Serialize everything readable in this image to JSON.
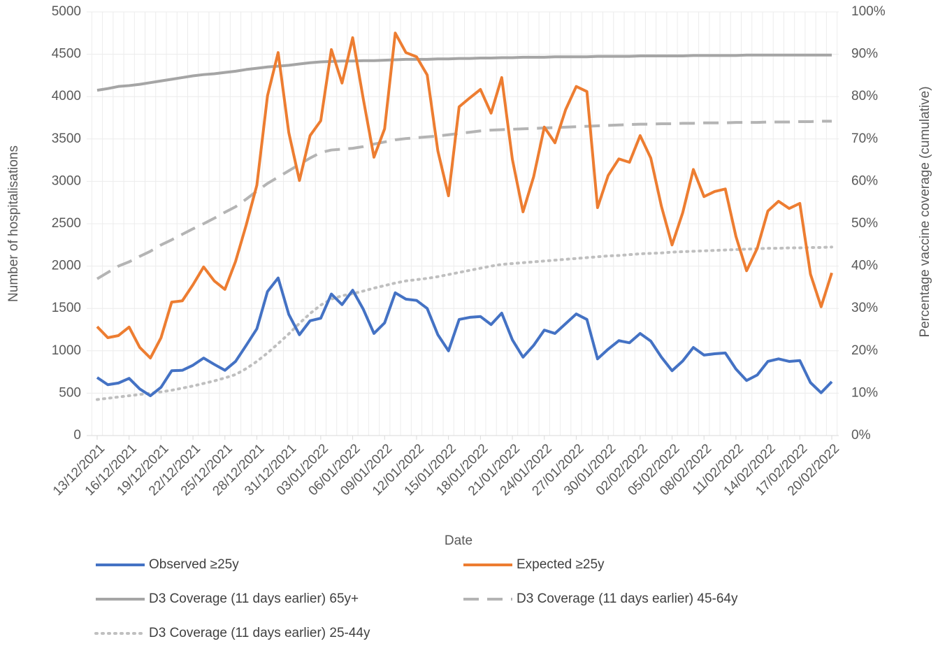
{
  "chart_data": {
    "type": "line",
    "x_label": "Date",
    "y_label": "Number of hospitalisations",
    "y2_label": "Percentage vaccine coverage (cumulative)",
    "categories": [
      "13/12/2021",
      null,
      null,
      "16/12/2021",
      null,
      null,
      "19/12/2021",
      null,
      null,
      "22/12/2021",
      null,
      null,
      "25/12/2021",
      null,
      null,
      "28/12/2021",
      null,
      null,
      "31/12/2021",
      null,
      null,
      "03/01/2022",
      null,
      null,
      "06/01/2022",
      null,
      null,
      "09/01/2022",
      null,
      null,
      "12/01/2022",
      null,
      null,
      "15/01/2022",
      null,
      null,
      "18/01/2022",
      null,
      null,
      "21/01/2022",
      null,
      null,
      "24/01/2022",
      null,
      null,
      "27/01/2022",
      null,
      null,
      "30/01/2022",
      null,
      null,
      "02/02/2022",
      null,
      null,
      "05/02/2022",
      null,
      null,
      "08/02/2022",
      null,
      null,
      "11/02/2022",
      null,
      null,
      "14/02/2022",
      null,
      null,
      "17/02/2022",
      null,
      null,
      "20/02/2022"
    ],
    "ylim": [
      0,
      5000
    ],
    "yticks": [
      0,
      500,
      1000,
      1500,
      2000,
      2500,
      3000,
      3500,
      4000,
      4500,
      5000
    ],
    "y2lim": [
      0,
      100
    ],
    "y2ticks": [
      {
        "value": 0,
        "label": "0%"
      },
      {
        "value": 10,
        "label": "10%"
      },
      {
        "value": 20,
        "label": "20%"
      },
      {
        "value": 30,
        "label": "30%"
      },
      {
        "value": 40,
        "label": "40%"
      },
      {
        "value": 50,
        "label": "50%"
      },
      {
        "value": 60,
        "label": "60%"
      },
      {
        "value": 70,
        "label": "70%"
      },
      {
        "value": 80,
        "label": "80%"
      },
      {
        "value": 90,
        "label": "90%"
      },
      {
        "value": 100,
        "label": "100%"
      }
    ],
    "grid": true,
    "legend": "bottom",
    "series": [
      {
        "name": "Observed ≥25y",
        "color": "#4472c4",
        "dash": "solid",
        "values": [
          685,
          600,
          620,
          675,
          550,
          470,
          570,
          765,
          770,
          830,
          915,
          840,
          770,
          875,
          1065,
          1260,
          1700,
          1860,
          1430,
          1190,
          1355,
          1385,
          1670,
          1545,
          1715,
          1490,
          1205,
          1330,
          1685,
          1610,
          1595,
          1500,
          1190,
          1000,
          1370,
          1395,
          1405,
          1310,
          1445,
          1130,
          925,
          1065,
          1245,
          1205,
          1320,
          1435,
          1370,
          905,
          1020,
          1120,
          1095,
          1205,
          1115,
          925,
          765,
          880,
          1040,
          950,
          965,
          975,
          785,
          650,
          715,
          875,
          905,
          875,
          885,
          625,
          505,
          635
        ]
      },
      {
        "name": "Expected ≥25y",
        "color": "#ed7d31",
        "dash": "solid",
        "values": [
          1285,
          1155,
          1180,
          1280,
          1040,
          915,
          1155,
          1575,
          1590,
          1780,
          1990,
          1825,
          1725,
          2055,
          2485,
          2955,
          4010,
          4520,
          3575,
          3010,
          3540,
          3715,
          4555,
          4160,
          4695,
          3970,
          3285,
          3620,
          4750,
          4520,
          4470,
          4255,
          3360,
          2830,
          3880,
          3985,
          4085,
          3805,
          4225,
          3260,
          2640,
          3055,
          3640,
          3455,
          3845,
          4120,
          4060,
          2690,
          3070,
          3265,
          3225,
          3540,
          3275,
          2705,
          2250,
          2630,
          3140,
          2820,
          2880,
          2910,
          2350,
          1945,
          2210,
          2650,
          2765,
          2680,
          2740,
          1905,
          1520,
          1920
        ]
      },
      {
        "name": "D3 Coverage (11 days earlier) 65y+",
        "color": "#a5a5a5",
        "dash": "solid",
        "axis": "y2",
        "values": [
          81.5,
          81.9,
          82.4,
          82.6,
          82.9,
          83.3,
          83.7,
          84.1,
          84.5,
          84.9,
          85.2,
          85.4,
          85.7,
          86.0,
          86.4,
          86.7,
          87.0,
          87.2,
          87.4,
          87.7,
          88.0,
          88.2,
          88.3,
          88.4,
          88.4,
          88.5,
          88.5,
          88.6,
          88.7,
          88.8,
          88.8,
          88.8,
          88.9,
          88.9,
          89.0,
          89.0,
          89.1,
          89.1,
          89.2,
          89.2,
          89.3,
          89.3,
          89.3,
          89.4,
          89.4,
          89.4,
          89.4,
          89.5,
          89.5,
          89.5,
          89.5,
          89.6,
          89.6,
          89.6,
          89.6,
          89.6,
          89.7,
          89.7,
          89.7,
          89.7,
          89.7,
          89.8,
          89.8,
          89.8,
          89.8,
          89.8,
          89.8,
          89.8,
          89.8,
          89.8
        ]
      },
      {
        "name": "D3 Coverage (11 days earlier) 45-64y",
        "color": "#b4b4b4",
        "dash": "dashed",
        "axis": "y2",
        "values": [
          37.0,
          38.5,
          40.0,
          41.0,
          42.3,
          43.5,
          45.0,
          46.2,
          47.5,
          48.8,
          50.0,
          51.3,
          52.7,
          54.0,
          55.8,
          57.7,
          59.5,
          61.0,
          62.5,
          64.0,
          65.5,
          66.8,
          67.4,
          67.6,
          67.8,
          68.2,
          68.8,
          69.3,
          69.8,
          70.1,
          70.3,
          70.5,
          70.7,
          71.0,
          71.3,
          71.6,
          71.9,
          72.1,
          72.2,
          72.3,
          72.4,
          72.5,
          72.6,
          72.7,
          72.8,
          72.9,
          73.0,
          73.1,
          73.2,
          73.3,
          73.4,
          73.5,
          73.5,
          73.6,
          73.6,
          73.7,
          73.7,
          73.8,
          73.8,
          73.8,
          73.9,
          73.9,
          73.9,
          74.0,
          74.0,
          74.0,
          74.1,
          74.1,
          74.2,
          74.2
        ]
      },
      {
        "name": "D3 Coverage (11 days earlier) 25-44y",
        "color": "#bfbfbf",
        "dash": "dotted",
        "axis": "y2",
        "values": [
          8.5,
          8.8,
          9.1,
          9.4,
          9.7,
          10.0,
          10.3,
          10.7,
          11.2,
          11.7,
          12.3,
          12.9,
          13.6,
          14.4,
          15.8,
          17.5,
          19.5,
          21.7,
          24.0,
          26.5,
          28.8,
          30.8,
          32.2,
          33.0,
          33.5,
          34.1,
          34.8,
          35.4,
          36.0,
          36.5,
          36.8,
          37.1,
          37.5,
          38.0,
          38.5,
          39.0,
          39.5,
          40.0,
          40.4,
          40.6,
          40.8,
          41.0,
          41.2,
          41.4,
          41.6,
          41.8,
          42.0,
          42.2,
          42.4,
          42.5,
          42.7,
          42.9,
          43.0,
          43.1,
          43.3,
          43.4,
          43.5,
          43.6,
          43.7,
          43.8,
          43.9,
          44.0,
          44.1,
          44.2,
          44.2,
          44.3,
          44.3,
          44.4,
          44.4,
          44.5
        ]
      }
    ]
  }
}
